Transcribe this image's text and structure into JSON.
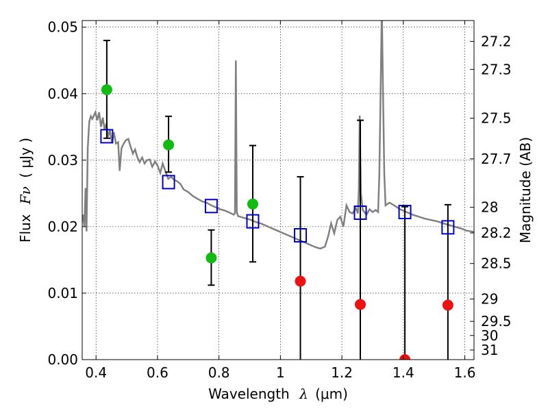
{
  "chart_data": {
    "type": "scatter",
    "title": "",
    "xlabel": "Wavelength",
    "xlabel_symbol": "λ",
    "xlabel_unit": "(μm)",
    "ylabel": "Flux",
    "ylabel_symbol": "Fν",
    "ylabel_unit": "( μJy )",
    "y2label": "Magnitude (AB)",
    "xlim": [
      0.355,
      1.63
    ],
    "ylim": [
      0.0,
      0.051
    ],
    "grid": true,
    "grid_style": "dotted",
    "x_ticks": [
      {
        "value": 0.4,
        "label": "0.4"
      },
      {
        "value": 0.6,
        "label": "0.6"
      },
      {
        "value": 0.8,
        "label": "0.8"
      },
      {
        "value": 1.0,
        "label": "1"
      },
      {
        "value": 1.2,
        "label": "1.2"
      },
      {
        "value": 1.4,
        "label": "1.4"
      },
      {
        "value": 1.6,
        "label": "1.6"
      }
    ],
    "y_ticks": [
      {
        "value": 0.0,
        "label": "0.00"
      },
      {
        "value": 0.01,
        "label": "0.01"
      },
      {
        "value": 0.02,
        "label": "0.02"
      },
      {
        "value": 0.03,
        "label": "0.03"
      },
      {
        "value": 0.04,
        "label": "0.04"
      },
      {
        "value": 0.05,
        "label": "0.05"
      }
    ],
    "mag_ticks": [
      {
        "mag": 27.2,
        "label": "27.2"
      },
      {
        "mag": 27.3,
        "label": "27.3"
      },
      {
        "mag": 27.5,
        "label": "27.5"
      },
      {
        "mag": 27.7,
        "label": "27.7"
      },
      {
        "mag": 28.0,
        "label": "28"
      },
      {
        "mag": 28.2,
        "label": "28.2"
      },
      {
        "mag": 28.5,
        "label": "28.5"
      },
      {
        "mag": 29.0,
        "label": "29"
      },
      {
        "mag": 29.5,
        "label": "29.5"
      },
      {
        "mag": 30.0,
        "label": "30"
      },
      {
        "mag": 31.0,
        "label": "31"
      }
    ],
    "colors": {
      "model": "#808080",
      "box": "#0000cc",
      "detected": "#11bb11",
      "upper_limit": "#ee1111",
      "errorbar": "#000000"
    },
    "model_spectrum": [
      [
        0.355,
        0.0208
      ],
      [
        0.358,
        0.0218
      ],
      [
        0.362,
        0.02
      ],
      [
        0.366,
        0.0258
      ],
      [
        0.369,
        0.0193
      ],
      [
        0.373,
        0.0318
      ],
      [
        0.378,
        0.0358
      ],
      [
        0.383,
        0.0366
      ],
      [
        0.388,
        0.0362
      ],
      [
        0.393,
        0.0367
      ],
      [
        0.398,
        0.0372
      ],
      [
        0.404,
        0.036
      ],
      [
        0.41,
        0.0372
      ],
      [
        0.416,
        0.035
      ],
      [
        0.422,
        0.0364
      ],
      [
        0.428,
        0.0346
      ],
      [
        0.434,
        0.0355
      ],
      [
        0.439,
        0.0335
      ],
      [
        0.445,
        0.0345
      ],
      [
        0.452,
        0.0326
      ],
      [
        0.458,
        0.0342
      ],
      [
        0.465,
        0.0325
      ],
      [
        0.472,
        0.0327
      ],
      [
        0.477,
        0.0284
      ],
      [
        0.483,
        0.0318
      ],
      [
        0.49,
        0.0325
      ],
      [
        0.497,
        0.033
      ],
      [
        0.505,
        0.0332
      ],
      [
        0.512,
        0.0321
      ],
      [
        0.52,
        0.031
      ],
      [
        0.527,
        0.0316
      ],
      [
        0.534,
        0.0305
      ],
      [
        0.542,
        0.0297
      ],
      [
        0.55,
        0.0304
      ],
      [
        0.558,
        0.0295
      ],
      [
        0.566,
        0.03
      ],
      [
        0.575,
        0.0301
      ],
      [
        0.583,
        0.029
      ],
      [
        0.592,
        0.0298
      ],
      [
        0.6,
        0.0292
      ],
      [
        0.609,
        0.0281
      ],
      [
        0.617,
        0.0295
      ],
      [
        0.626,
        0.0283
      ],
      [
        0.635,
        0.0272
      ],
      [
        0.645,
        0.0275
      ],
      [
        0.655,
        0.027
      ],
      [
        0.665,
        0.0268
      ],
      [
        0.675,
        0.0264
      ],
      [
        0.685,
        0.0256
      ],
      [
        0.7,
        0.0252
      ],
      [
        0.715,
        0.0246
      ],
      [
        0.73,
        0.0242
      ],
      [
        0.745,
        0.0238
      ],
      [
        0.76,
        0.0236
      ],
      [
        0.775,
        0.0232
      ],
      [
        0.79,
        0.0229
      ],
      [
        0.805,
        0.0226
      ],
      [
        0.82,
        0.0224
      ],
      [
        0.835,
        0.0221
      ],
      [
        0.848,
        0.0218
      ],
      [
        0.852,
        0.022
      ],
      [
        0.855,
        0.045
      ],
      [
        0.858,
        0.0222
      ],
      [
        0.862,
        0.0216
      ],
      [
        0.875,
        0.0214
      ],
      [
        0.89,
        0.0212
      ],
      [
        0.905,
        0.021
      ],
      [
        0.92,
        0.0207
      ],
      [
        0.935,
        0.0205
      ],
      [
        0.95,
        0.0202
      ],
      [
        0.965,
        0.0199
      ],
      [
        0.98,
        0.0196
      ],
      [
        0.995,
        0.0193
      ],
      [
        1.01,
        0.019
      ],
      [
        1.025,
        0.0187
      ],
      [
        1.04,
        0.0184
      ],
      [
        1.055,
        0.0181
      ],
      [
        1.07,
        0.0178
      ],
      [
        1.085,
        0.0175
      ],
      [
        1.1,
        0.0172
      ],
      [
        1.115,
        0.0169
      ],
      [
        1.13,
        0.0167
      ],
      [
        1.145,
        0.017
      ],
      [
        1.155,
        0.0185
      ],
      [
        1.165,
        0.0205
      ],
      [
        1.175,
        0.019
      ],
      [
        1.185,
        0.021
      ],
      [
        1.195,
        0.0215
      ],
      [
        1.205,
        0.02
      ],
      [
        1.215,
        0.0232
      ],
      [
        1.225,
        0.0222
      ],
      [
        1.235,
        0.022
      ],
      [
        1.245,
        0.0228
      ],
      [
        1.252,
        0.022
      ],
      [
        1.255,
        0.0255
      ],
      [
        1.258,
        0.0367
      ],
      [
        1.262,
        0.025
      ],
      [
        1.268,
        0.0225
      ],
      [
        1.28,
        0.0218
      ],
      [
        1.29,
        0.0226
      ],
      [
        1.3,
        0.0222
      ],
      [
        1.31,
        0.0225
      ],
      [
        1.318,
        0.0222
      ],
      [
        1.322,
        0.028
      ],
      [
        1.326,
        0.04
      ],
      [
        1.33,
        0.053
      ],
      [
        1.334,
        0.04
      ],
      [
        1.338,
        0.028
      ],
      [
        1.342,
        0.0232
      ],
      [
        1.355,
        0.0236
      ],
      [
        1.37,
        0.0232
      ],
      [
        1.39,
        0.0226
      ],
      [
        1.41,
        0.0222
      ],
      [
        1.43,
        0.0218
      ],
      [
        1.45,
        0.0215
      ],
      [
        1.47,
        0.0212
      ],
      [
        1.49,
        0.021
      ],
      [
        1.51,
        0.0208
      ],
      [
        1.53,
        0.0205
      ],
      [
        1.545,
        0.0203
      ],
      [
        1.56,
        0.0201
      ],
      [
        1.575,
        0.0199
      ],
      [
        1.59,
        0.0197
      ],
      [
        1.605,
        0.0194
      ],
      [
        1.62,
        0.0193
      ],
      [
        1.63,
        0.0192
      ]
    ],
    "model_band_flux": [
      {
        "x": 0.435,
        "y": 0.0336
      },
      {
        "x": 0.636,
        "y": 0.0267
      },
      {
        "x": 0.775,
        "y": 0.0231
      },
      {
        "x": 0.91,
        "y": 0.0208
      },
      {
        "x": 1.065,
        "y": 0.0187
      },
      {
        "x": 1.26,
        "y": 0.0221
      },
      {
        "x": 1.405,
        "y": 0.0222
      },
      {
        "x": 1.545,
        "y": 0.0199
      }
    ],
    "observed_detected": [
      {
        "x": 0.435,
        "y": 0.0406,
        "yerr_low": 0.0333,
        "yerr_high": 0.048
      },
      {
        "x": 0.636,
        "y": 0.0323,
        "yerr_low": 0.0282,
        "yerr_high": 0.0366
      },
      {
        "x": 0.775,
        "y": 0.0153,
        "yerr_low": 0.0112,
        "yerr_high": 0.0195
      },
      {
        "x": 0.91,
        "y": 0.0234,
        "yerr_low": 0.0147,
        "yerr_high": 0.0322
      }
    ],
    "observed_upper_limits": [
      {
        "x": 1.065,
        "y": 0.0118,
        "yerr_low": 0.0,
        "yerr_high": 0.0275
      },
      {
        "x": 1.26,
        "y": 0.0083,
        "yerr_low": 0.0,
        "yerr_high": 0.036
      },
      {
        "x": 1.405,
        "y": 0.0,
        "yerr_low": 0.0,
        "yerr_high": 0.023
      },
      {
        "x": 1.545,
        "y": 0.0082,
        "yerr_low": 0.0,
        "yerr_high": 0.0233
      }
    ]
  }
}
